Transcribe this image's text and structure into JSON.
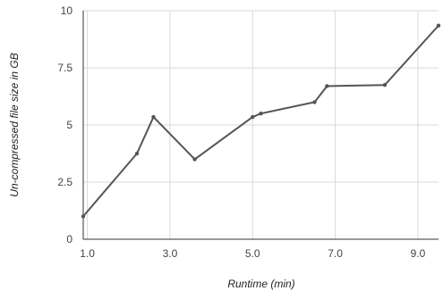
{
  "chart_data": {
    "type": "line",
    "title": "",
    "xlabel": "Runtime (min)",
    "ylabel": "Un-compressed file size in GB",
    "xlim": [
      0.9,
      9.5
    ],
    "ylim": [
      0,
      10
    ],
    "x_ticks": [
      1.0,
      3.0,
      5.0,
      7.0,
      9.0
    ],
    "x_tick_labels": [
      "1.0",
      "3.0",
      "5.0",
      "7.0",
      "9.0"
    ],
    "y_ticks": [
      0,
      2.5,
      5,
      7.5,
      10
    ],
    "y_tick_labels": [
      "0",
      "2.5",
      "5",
      "7.5",
      "10"
    ],
    "grid": true,
    "legend": "none",
    "series": [
      {
        "color": "#555555",
        "x": [
          0.9,
          2.2,
          2.6,
          3.6,
          5.0,
          5.2,
          6.5,
          6.8,
          8.2,
          9.5
        ],
        "y": [
          1.0,
          3.75,
          5.35,
          3.5,
          5.35,
          5.5,
          6.0,
          6.7,
          6.75,
          9.35
        ]
      }
    ]
  }
}
